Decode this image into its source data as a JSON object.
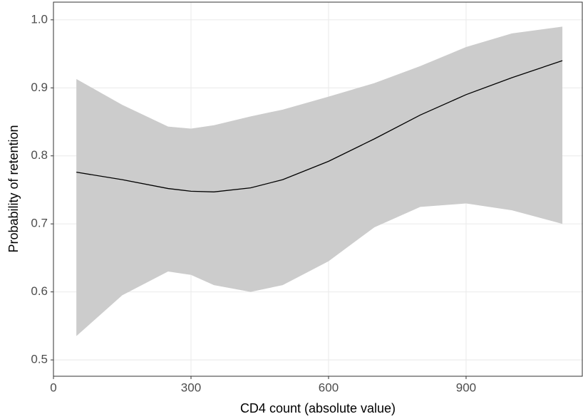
{
  "chart_data": {
    "type": "line",
    "x_label": "CD4 count (absolute value)",
    "y_label": "Probability of retention",
    "x": [
      50,
      150,
      250,
      300,
      350,
      430,
      500,
      600,
      700,
      800,
      900,
      1000,
      1110
    ],
    "values": [
      0.776,
      0.765,
      0.752,
      0.748,
      0.747,
      0.753,
      0.765,
      0.792,
      0.825,
      0.86,
      0.89,
      0.915,
      0.94
    ],
    "upper": [
      0.913,
      0.875,
      0.843,
      0.84,
      0.845,
      0.858,
      0.868,
      0.887,
      0.907,
      0.932,
      0.96,
      0.98,
      0.99
    ],
    "lower": [
      0.535,
      0.595,
      0.63,
      0.625,
      0.61,
      0.6,
      0.61,
      0.645,
      0.695,
      0.725,
      0.73,
      0.72,
      0.7
    ],
    "color": "#000000",
    "band_color": "#cccccc",
    "xlim": [
      0,
      1155
    ],
    "ylim": [
      0.476,
      1.026
    ],
    "xticks": [
      0,
      300,
      600,
      900
    ],
    "yticks": [
      {
        "value": 0.5,
        "label": "0.5"
      },
      {
        "value": 0.6,
        "label": "0.6"
      },
      {
        "value": 0.7,
        "label": "0.7"
      },
      {
        "value": 0.8,
        "label": "0.8"
      },
      {
        "value": 0.9,
        "label": "0.9"
      },
      {
        "value": 1,
        "label": "1.0"
      }
    ],
    "grid": true
  }
}
